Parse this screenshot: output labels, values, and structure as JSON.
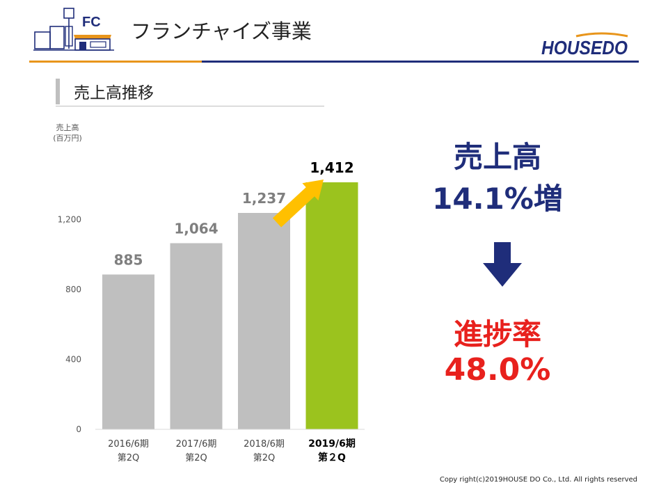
{
  "header": {
    "logo_text": "FC",
    "title": "フランチャイズ事業",
    "brand": "HOUSEDO"
  },
  "section": {
    "title": "売上高推移"
  },
  "chart_data": {
    "type": "bar",
    "ylabel_lines": [
      "売上高",
      "(百万円)"
    ],
    "ylim": [
      0,
      1500
    ],
    "yticks": [
      0,
      400,
      800,
      1200
    ],
    "ytick_labels": [
      "0",
      "400",
      "800",
      "1,200"
    ],
    "categories": [
      [
        "2016/6期",
        "第2Q"
      ],
      [
        "2017/6期",
        "第2Q"
      ],
      [
        "2018/6期",
        "第2Q"
      ],
      [
        "2019/6期",
        "第２Q"
      ]
    ],
    "values": [
      885,
      1064,
      1237,
      1412
    ],
    "value_labels": [
      "885",
      "1,064",
      "1,237",
      "1,412"
    ],
    "highlight_index": 3,
    "colors": {
      "default": "#BFBFBF",
      "highlight": "#9BC31E",
      "arrow": "#FFC000"
    },
    "grid": false
  },
  "callouts": {
    "sales_title": "売上高",
    "sales_growth": "14.1%増",
    "progress_title": "進捗率",
    "progress_value": "48.0%",
    "arrow_icon": "down-arrow-icon",
    "colors": {
      "navy": "#1F2D7A",
      "red": "#E8211D"
    }
  },
  "footer": {
    "copyright": "Copy right(c)2019HOUSE DO Co., Ltd. All rights reserved"
  }
}
